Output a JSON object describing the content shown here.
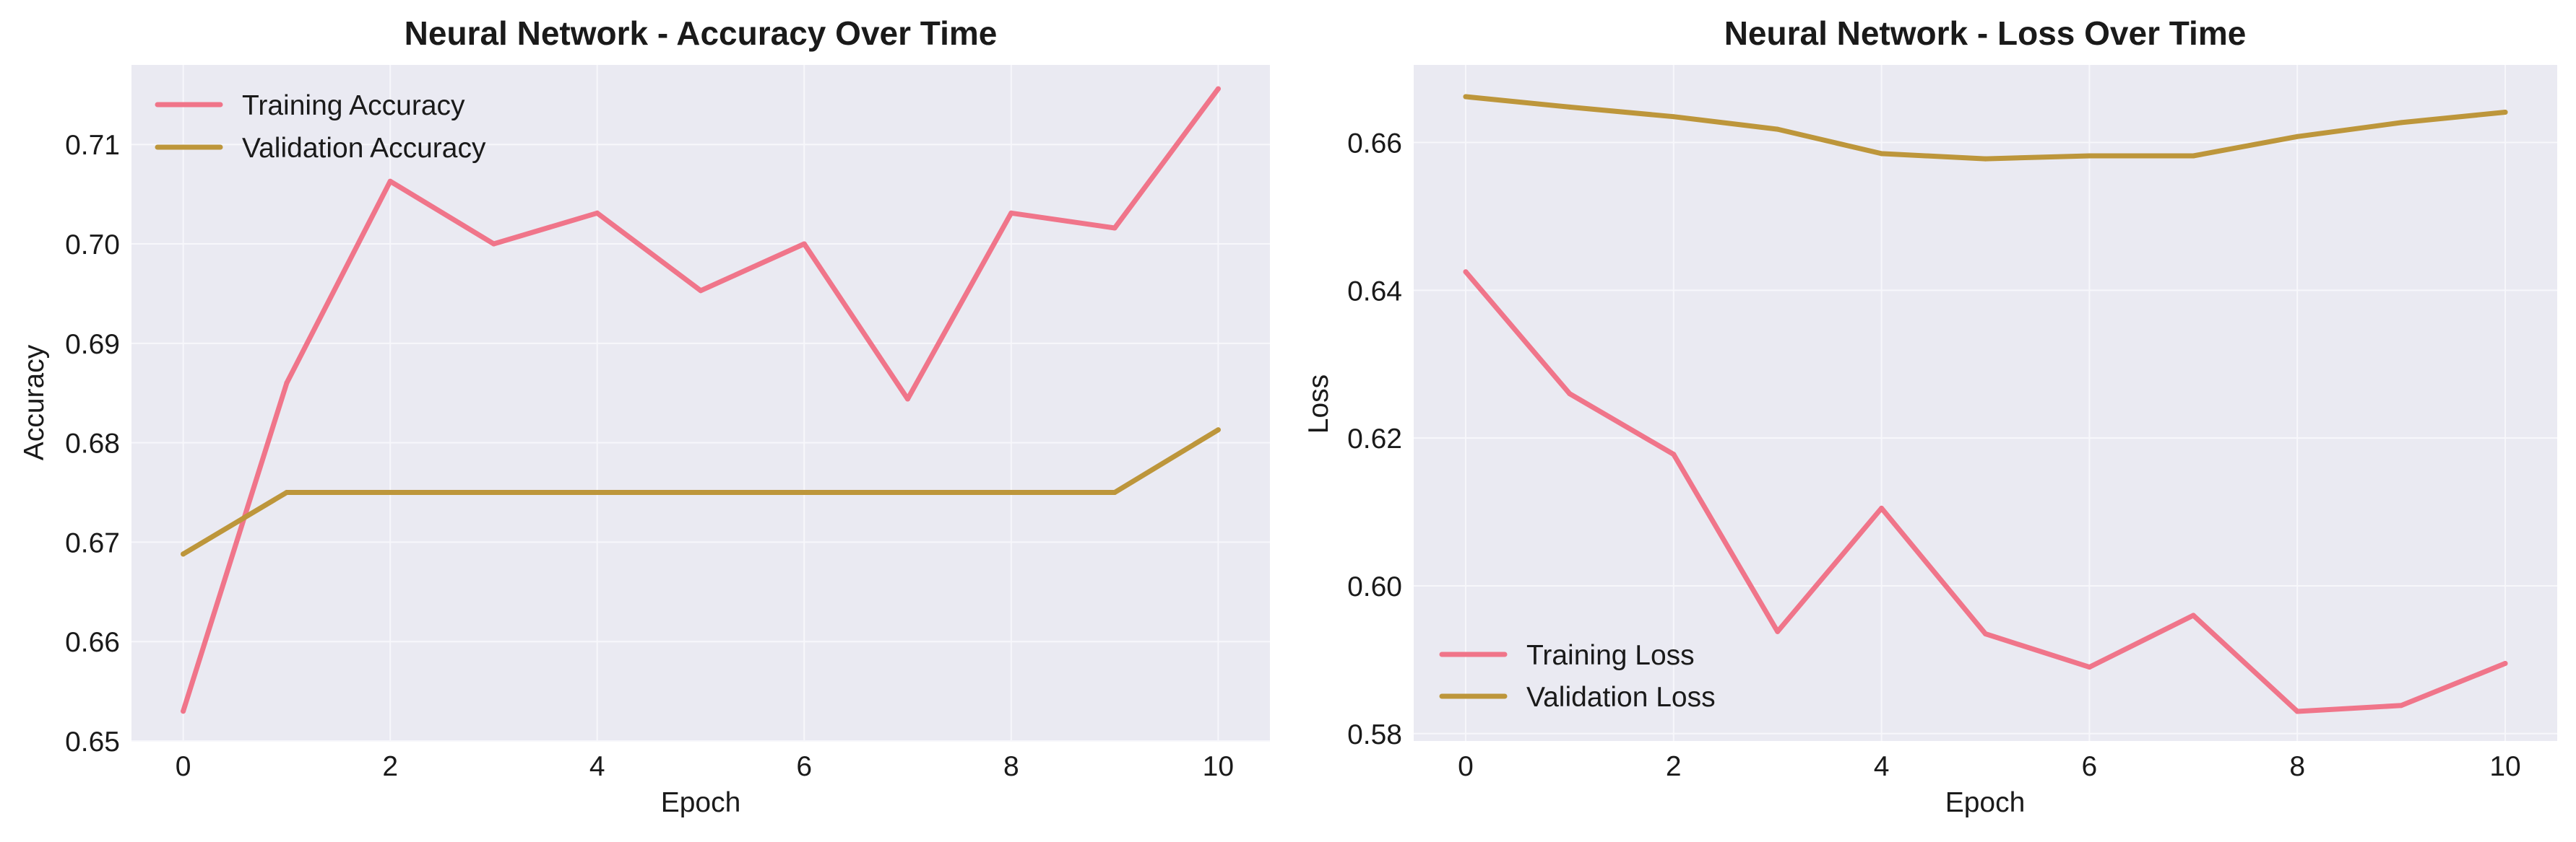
{
  "chart_data": [
    {
      "type": "line",
      "title": "Neural Network - Accuracy Over Time",
      "xlabel": "Epoch",
      "ylabel": "Accuracy",
      "xlim": [
        -0.5,
        10.5
      ],
      "ylim": [
        0.65,
        0.718
      ],
      "x_ticks": [
        0,
        2,
        4,
        6,
        8,
        10
      ],
      "x_tick_labels": [
        "0",
        "2",
        "4",
        "6",
        "8",
        "10"
      ],
      "y_ticks": [
        0.65,
        0.66,
        0.67,
        0.68,
        0.69,
        0.7,
        0.71
      ],
      "y_tick_labels": [
        "0.65",
        "0.66",
        "0.67",
        "0.68",
        "0.69",
        "0.70",
        "0.71"
      ],
      "grid": true,
      "legend_position": "top-left",
      "x": [
        0,
        1,
        2,
        3,
        4,
        5,
        6,
        7,
        8,
        9,
        10
      ],
      "series": [
        {
          "name": "Training Accuracy",
          "color": "#f0758a",
          "values": [
            0.653,
            0.686,
            0.7063,
            0.7,
            0.7031,
            0.6953,
            0.7,
            0.6844,
            0.7031,
            0.7016,
            0.7156
          ]
        },
        {
          "name": "Validation Accuracy",
          "color": "#bd963b",
          "values": [
            0.6688,
            0.675,
            0.675,
            0.675,
            0.675,
            0.675,
            0.675,
            0.675,
            0.675,
            0.675,
            0.6813
          ]
        }
      ]
    },
    {
      "type": "line",
      "title": "Neural Network - Loss Over Time",
      "xlabel": "Epoch",
      "ylabel": "Loss",
      "xlim": [
        -0.5,
        10.5
      ],
      "ylim": [
        0.579,
        0.6705
      ],
      "x_ticks": [
        0,
        2,
        4,
        6,
        8,
        10
      ],
      "x_tick_labels": [
        "0",
        "2",
        "4",
        "6",
        "8",
        "10"
      ],
      "y_ticks": [
        0.58,
        0.6,
        0.62,
        0.64,
        0.66
      ],
      "y_tick_labels": [
        "0.58",
        "0.60",
        "0.62",
        "0.64",
        "0.66"
      ],
      "grid": true,
      "legend_position": "bottom-left",
      "x": [
        0,
        1,
        2,
        3,
        4,
        5,
        6,
        7,
        8,
        9,
        10
      ],
      "series": [
        {
          "name": "Training Loss",
          "color": "#f0758a",
          "values": [
            0.6425,
            0.626,
            0.6178,
            0.5938,
            0.6105,
            0.5935,
            0.589,
            0.596,
            0.583,
            0.5838,
            0.5895
          ]
        },
        {
          "name": "Validation Loss",
          "color": "#bd963b",
          "values": [
            0.6662,
            0.6648,
            0.6635,
            0.6618,
            0.6585,
            0.6578,
            0.6582,
            0.6582,
            0.6608,
            0.6627,
            0.6641
          ]
        }
      ]
    }
  ]
}
